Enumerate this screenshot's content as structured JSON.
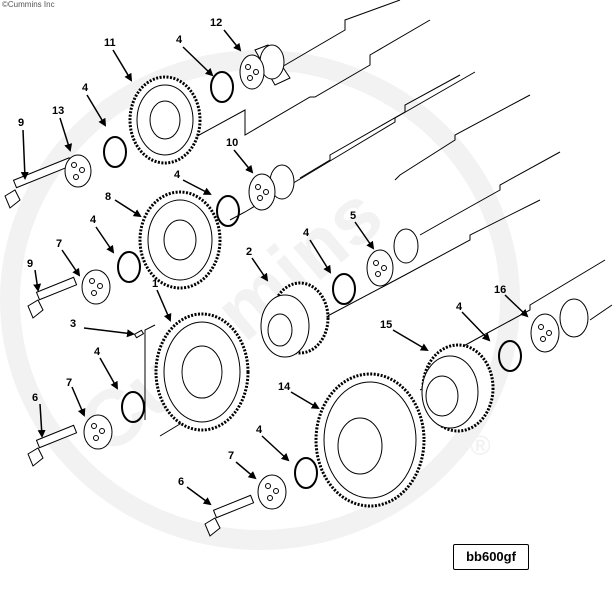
{
  "copyright": "©Cummins Inc",
  "watermark": "Cummins",
  "diagram_code": "bb600gf",
  "registered_mark": "®",
  "callouts": [
    "12",
    "4",
    "11",
    "13",
    "4",
    "9",
    "10",
    "4",
    "8",
    "4",
    "7",
    "9",
    "5",
    "4",
    "2",
    "1",
    "3",
    "16",
    "4",
    "15",
    "4",
    "7",
    "6",
    "14",
    "4",
    "7",
    "6"
  ]
}
